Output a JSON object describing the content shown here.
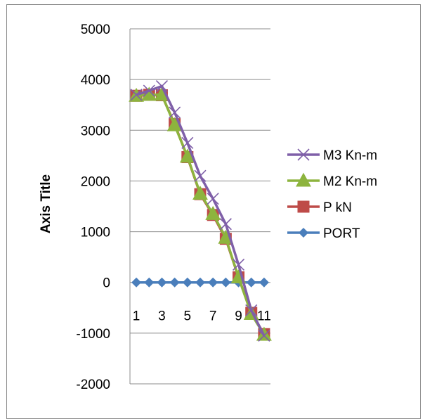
{
  "chart_data": {
    "type": "line",
    "title": "",
    "xlabel": "",
    "ylabel": "Axis Title",
    "ylim": [
      -2000,
      5000
    ],
    "yticks": [
      5000,
      4000,
      3000,
      2000,
      1000,
      0,
      -1000,
      -2000
    ],
    "x": [
      1,
      2,
      3,
      4,
      5,
      6,
      7,
      8,
      9,
      10,
      11
    ],
    "xtick_labels": [
      "1",
      "3",
      "5",
      "7",
      "9",
      "11"
    ],
    "grid": "horizontal major gridlines",
    "legend_position": "right",
    "series": [
      {
        "name": "M3 Kn-m",
        "color": "#7F5FA8",
        "marker": "x",
        "values": [
          3700,
          3780,
          3870,
          3350,
          2750,
          2100,
          1650,
          1150,
          350,
          -550,
          -1050
        ]
      },
      {
        "name": "M2 Kn-m",
        "color": "#8DB43E",
        "marker": "triangle",
        "values": [
          3680,
          3700,
          3700,
          3100,
          2480,
          1750,
          1350,
          880,
          100,
          -620,
          -1030
        ]
      },
      {
        "name": "P kN",
        "color": "#BE4B48",
        "marker": "square",
        "values": [
          3680,
          3700,
          3690,
          3120,
          2470,
          1740,
          1330,
          860,
          100,
          -600,
          -1020
        ]
      },
      {
        "name": "PORT",
        "color": "#4A7EBB",
        "marker": "diamond",
        "values": [
          0,
          0,
          0,
          0,
          0,
          0,
          0,
          0,
          0,
          0,
          0
        ]
      }
    ]
  }
}
